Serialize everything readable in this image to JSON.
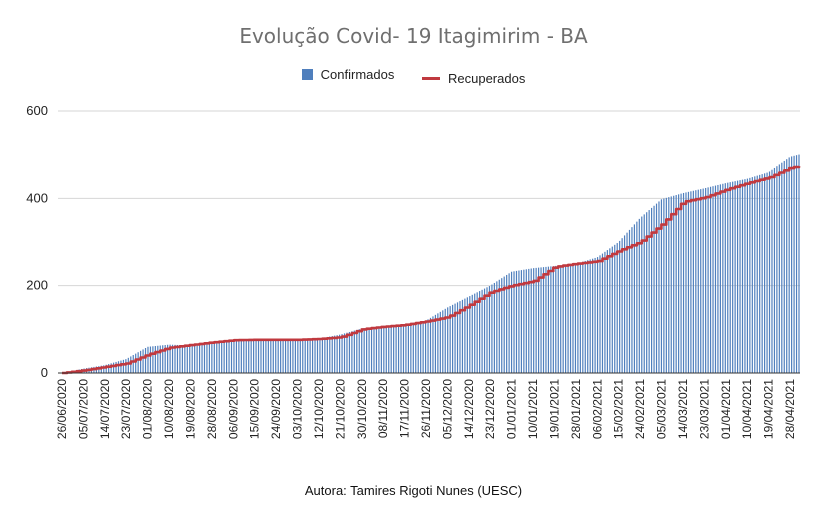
{
  "chart_data": {
    "type": "bar",
    "title": "Evolução Covid- 19 Itagimirim - BA",
    "source_note": "Autora: Tamires Rigoti Nunes (UESC)",
    "xlabel": "",
    "ylabel": "",
    "ylim": [
      0,
      600
    ],
    "yticks": [
      0,
      200,
      400,
      600
    ],
    "grid": true,
    "legend_position": "top",
    "x_tick_labels": [
      "26/06/2020",
      "05/07/2020",
      "14/07/2020",
      "23/07/2020",
      "01/08/2020",
      "10/08/2020",
      "19/08/2020",
      "28/08/2020",
      "06/09/2020",
      "15/09/2020",
      "24/09/2020",
      "03/10/2020",
      "12/10/2020",
      "21/10/2020",
      "30/10/2020",
      "08/11/2020",
      "17/11/2020",
      "26/11/2020",
      "05/12/2020",
      "14/12/2020",
      "23/12/2020",
      "01/01/2021",
      "10/01/2021",
      "19/01/2021",
      "28/01/2021",
      "06/02/2021",
      "15/02/2021",
      "24/02/2021",
      "05/03/2021",
      "14/03/2021",
      "23/03/2021",
      "01/04/2021",
      "10/04/2021",
      "19/04/2021",
      "28/04/2021"
    ],
    "series": [
      {
        "name": "Confirmados",
        "kind": "bar",
        "color": "#4f7fbd",
        "values": [
          0,
          10,
          18,
          32,
          60,
          65,
          63,
          72,
          77,
          77,
          77,
          77,
          79,
          88,
          102,
          108,
          112,
          120,
          150,
          175,
          200,
          232,
          240,
          245,
          250,
          265,
          300,
          355,
          398,
          412,
          423,
          435,
          445,
          460,
          495
        ]
      },
      {
        "name": "Recuperados",
        "kind": "line",
        "color": "#c0393f",
        "values": [
          0,
          6,
          14,
          22,
          42,
          58,
          64,
          70,
          75,
          76,
          76,
          76,
          78,
          82,
          100,
          106,
          110,
          118,
          128,
          155,
          185,
          200,
          210,
          243,
          250,
          256,
          280,
          300,
          340,
          392,
          402,
          420,
          435,
          448,
          470
        ]
      }
    ],
    "last_values": {
      "Confirmados": 512,
      "Recuperados": 482
    }
  }
}
